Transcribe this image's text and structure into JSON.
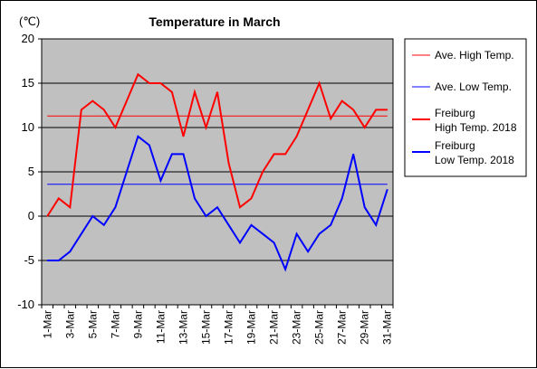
{
  "chart_data": {
    "type": "line",
    "title": "Temperature in March",
    "yunit": "(℃)",
    "ylim": [
      -10,
      20
    ],
    "yticks": [
      20,
      15,
      10,
      5,
      0,
      -5,
      -10
    ],
    "grid": true,
    "legend_position": "right",
    "x": [
      "1-Mar",
      "2-Mar",
      "3-Mar",
      "4-Mar",
      "5-Mar",
      "6-Mar",
      "7-Mar",
      "8-Mar",
      "9-Mar",
      "10-Mar",
      "11-Mar",
      "12-Mar",
      "13-Mar",
      "14-Mar",
      "15-Mar",
      "16-Mar",
      "17-Mar",
      "18-Mar",
      "19-Mar",
      "20-Mar",
      "21-Mar",
      "22-Mar",
      "23-Mar",
      "24-Mar",
      "25-Mar",
      "26-Mar",
      "27-Mar",
      "28-Mar",
      "29-Mar",
      "30-Mar",
      "31-Mar"
    ],
    "xtick_labels": [
      "1-Mar",
      "3-Mar",
      "5-Mar",
      "7-Mar",
      "9-Mar",
      "11-Mar",
      "13-Mar",
      "15-Mar",
      "17-Mar",
      "19-Mar",
      "21-Mar",
      "23-Mar",
      "25-Mar",
      "27-Mar",
      "29-Mar",
      "31-Mar"
    ],
    "series": [
      {
        "name": "Ave. High Temp.",
        "color": "#ff0000",
        "width": 1,
        "constant": 11.3
      },
      {
        "name": "Ave. Low Temp.",
        "color": "#0000ff",
        "width": 1,
        "constant": 3.6
      },
      {
        "name": "Freiburg High Temp. 2018",
        "label_lines": [
          "Freiburg",
          "High Temp. 2018"
        ],
        "color": "#ff0000",
        "width": 2,
        "values": [
          0,
          2,
          1,
          12,
          13,
          12,
          10,
          13,
          16,
          15,
          15,
          14,
          9,
          14,
          10,
          14,
          6,
          1,
          2,
          5,
          7,
          7,
          9,
          12,
          15,
          11,
          13,
          12,
          10,
          12,
          12
        ]
      },
      {
        "name": "Freiburg Low Temp. 2018",
        "label_lines": [
          "Freiburg",
          "Low Temp. 2018"
        ],
        "color": "#0000ff",
        "width": 2,
        "values": [
          -5,
          -5,
          -4,
          -2,
          0,
          -1,
          1,
          5,
          9,
          8,
          4,
          7,
          7,
          2,
          0,
          1,
          -1,
          -3,
          -1,
          -2,
          -3,
          -6,
          -2,
          -4,
          -2,
          -1,
          2,
          7,
          1,
          -1,
          3
        ]
      }
    ]
  }
}
